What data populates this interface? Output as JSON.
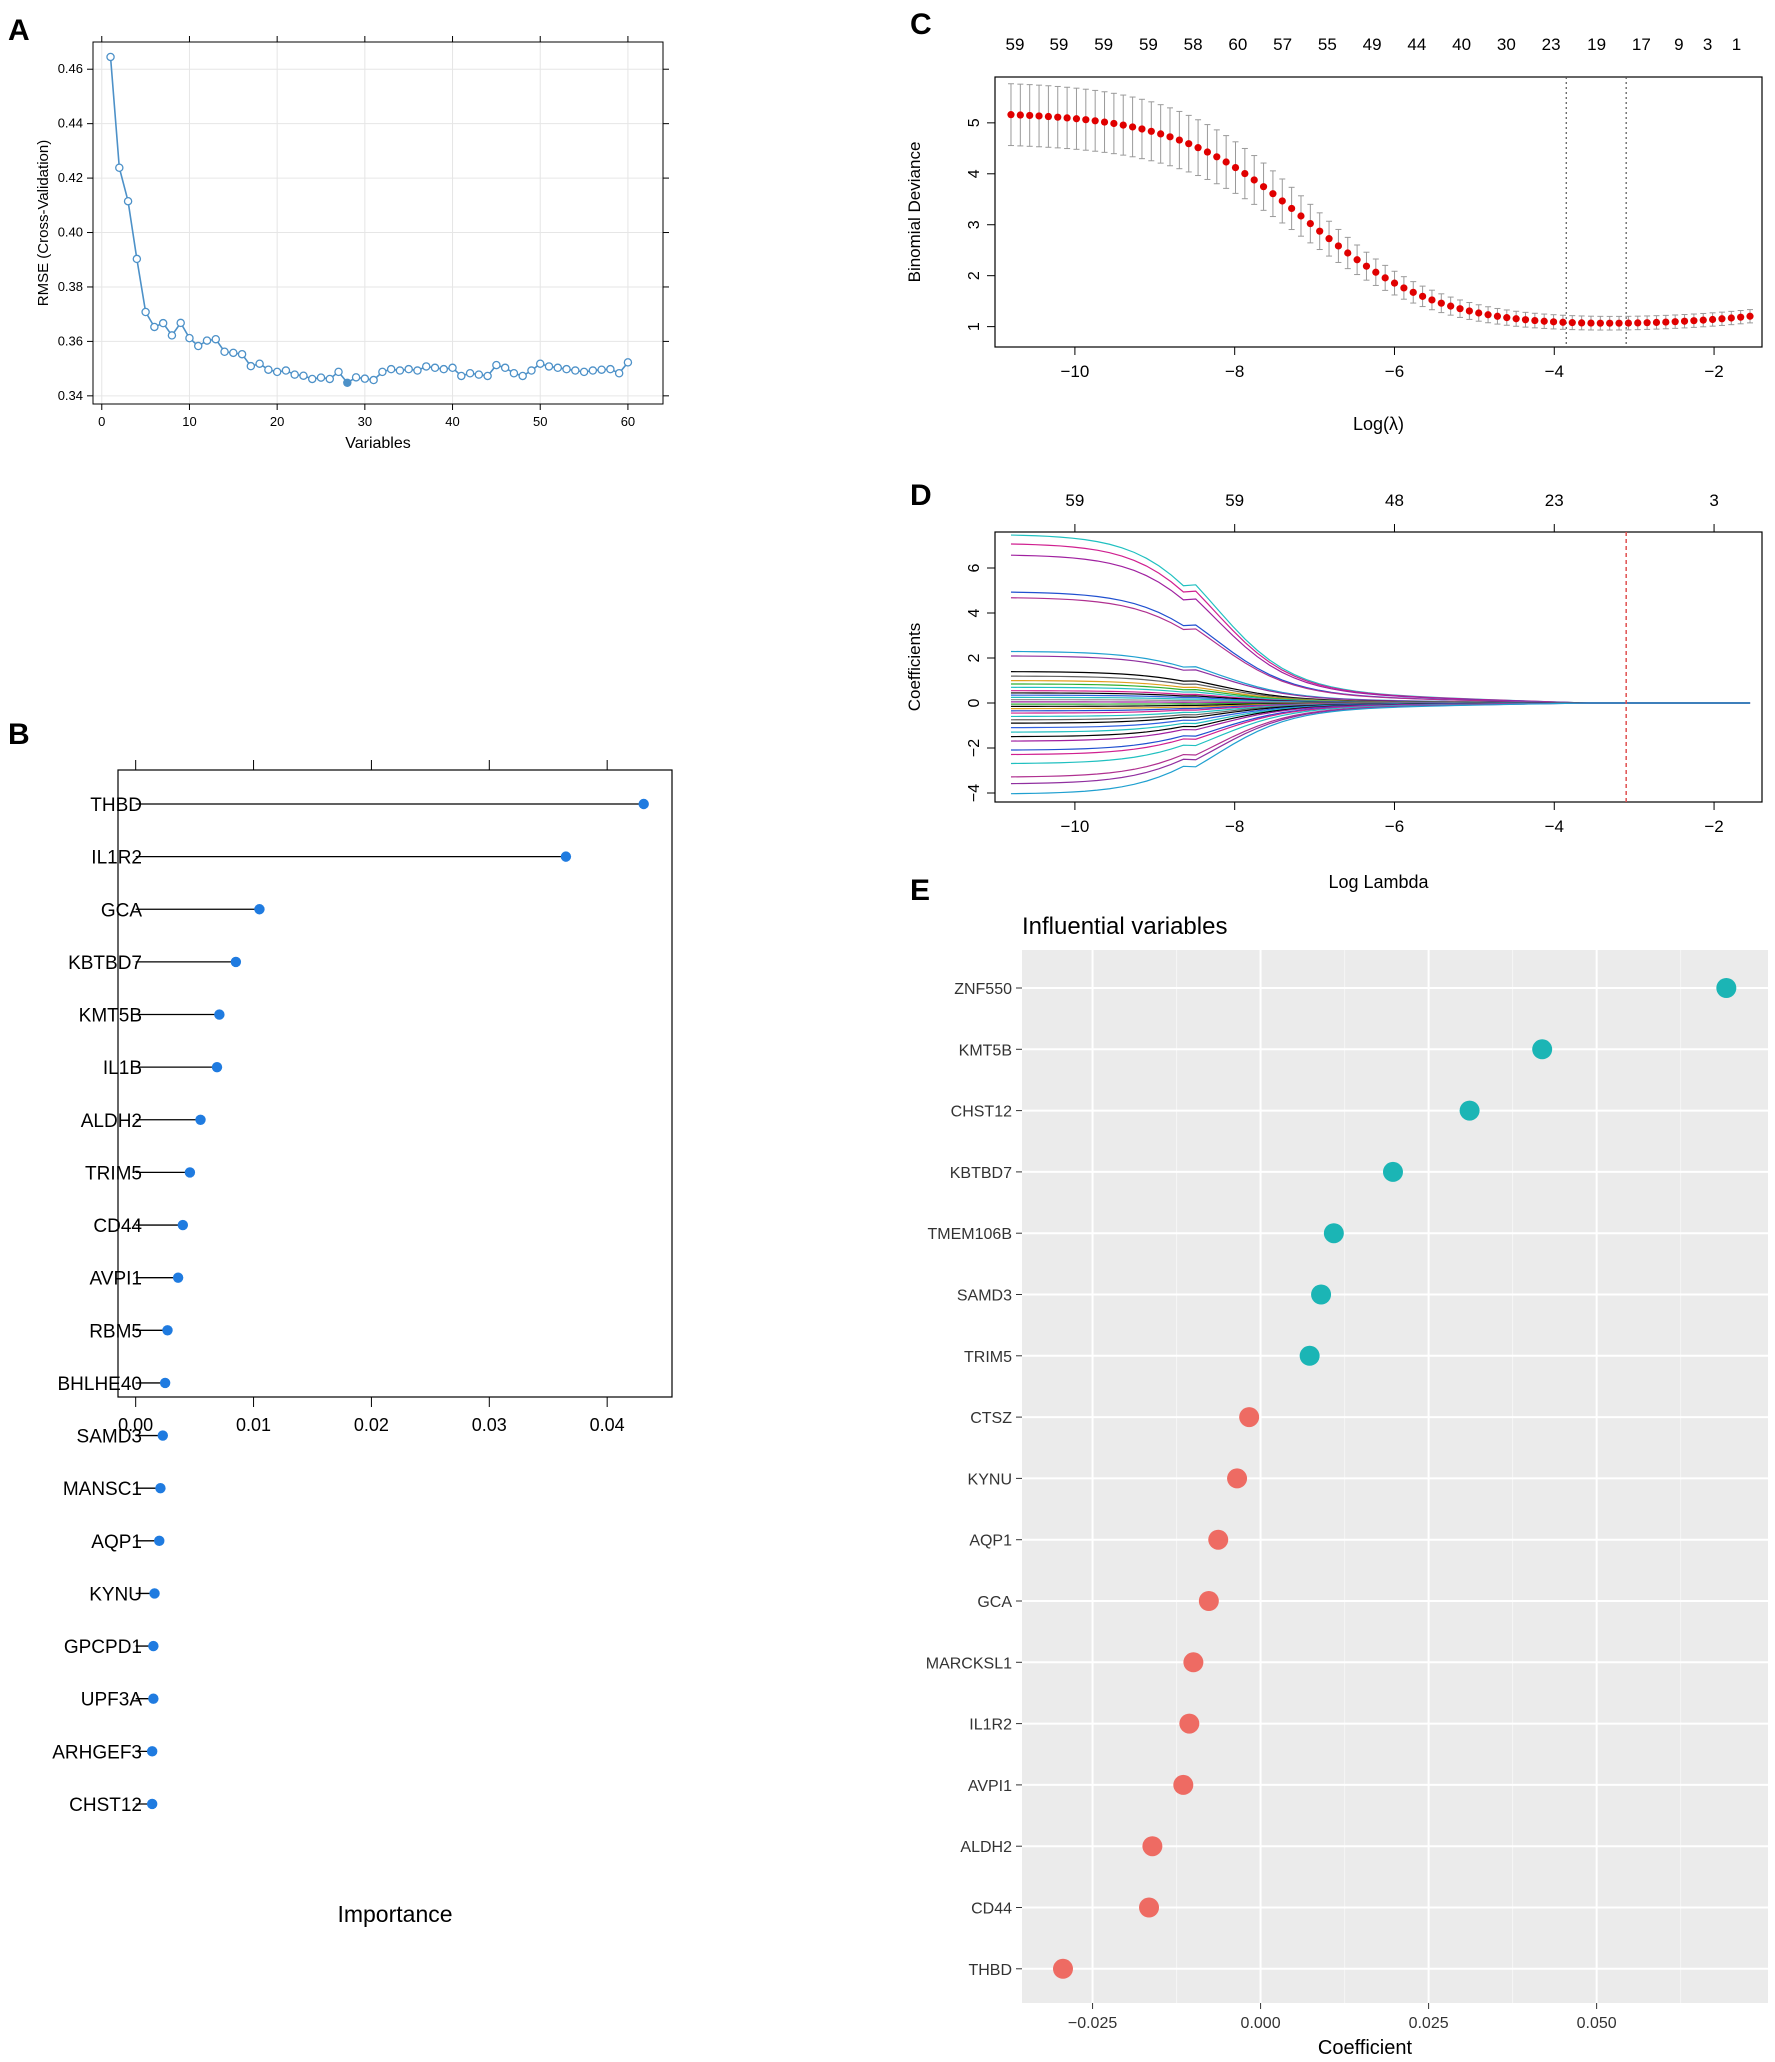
{
  "figure": {
    "colors": {
      "blue": "#1f7be0",
      "rfe_line": "#4d91c8",
      "red": "#e00000",
      "teal": "#1bb5b5",
      "salmon": "#ee6b63",
      "ggplot_bg": "#ebebeb",
      "grid": "#e6e6e6",
      "vline": "#e05050"
    }
  },
  "chart_data": [
    {
      "panel": "A",
      "type": "line",
      "xlabel": "Variables",
      "ylabel": "RMSE (Cross-Validation)",
      "xlim": [
        -1,
        64
      ],
      "ylim": [
        0.337,
        0.47
      ],
      "xticks": [
        0,
        10,
        20,
        30,
        40,
        50,
        60
      ],
      "yticks": [
        0.34,
        0.36,
        0.38,
        0.4,
        0.42,
        0.44,
        0.46
      ],
      "ytick_labels": [
        "0.34",
        "0.36",
        "0.38",
        "0.40",
        "0.42",
        "0.44",
        "0.46"
      ],
      "x": [
        1,
        2,
        3,
        4,
        5,
        6,
        7,
        8,
        9,
        10,
        11,
        12,
        13,
        14,
        15,
        16,
        17,
        18,
        19,
        20,
        21,
        22,
        23,
        24,
        25,
        26,
        27,
        28,
        29,
        30,
        31,
        32,
        33,
        34,
        35,
        36,
        37,
        38,
        39,
        40,
        41,
        42,
        43,
        44,
        45,
        46,
        47,
        48,
        49,
        50,
        51,
        52,
        53,
        54,
        55,
        56,
        57,
        58,
        59,
        60
      ],
      "y": [
        0.4645,
        0.4238,
        0.4115,
        0.3903,
        0.3708,
        0.3653,
        0.3667,
        0.3622,
        0.3668,
        0.3612,
        0.3583,
        0.3603,
        0.3608,
        0.3562,
        0.3558,
        0.3553,
        0.3509,
        0.3518,
        0.3496,
        0.3488,
        0.3493,
        0.3478,
        0.3474,
        0.3462,
        0.3467,
        0.3462,
        0.3488,
        0.3448,
        0.3468,
        0.3463,
        0.3458,
        0.3488,
        0.3498,
        0.3493,
        0.3498,
        0.3493,
        0.3508,
        0.3503,
        0.3498,
        0.3503,
        0.3473,
        0.3483,
        0.3478,
        0.3473,
        0.3513,
        0.3503,
        0.3483,
        0.3473,
        0.3493,
        0.3518,
        0.3508,
        0.3503,
        0.3498,
        0.3493,
        0.3488,
        0.3493,
        0.3496,
        0.3498,
        0.3483,
        0.3523
      ],
      "best_x": 28
    },
    {
      "panel": "B",
      "type": "lollipop",
      "xlabel": "Importance",
      "xlim": [
        -0.0015,
        0.0455
      ],
      "xticks": [
        0.0,
        0.01,
        0.02,
        0.03,
        0.04
      ],
      "xtick_labels": [
        "0.00",
        "0.01",
        "0.02",
        "0.03",
        "0.04"
      ],
      "categories": [
        "THBD",
        "IL1R2",
        "GCA",
        "KBTBD7",
        "KMT5B",
        "IL1B",
        "ALDH2",
        "TRIM5",
        "CD44",
        "AVPI1",
        "RBM5",
        "BHLHE40",
        "SAMD3",
        "MANSC1",
        "AQP1",
        "KYNU",
        "GPCPD1",
        "UPF3A",
        "ARHGEF3",
        "CHST12"
      ],
      "values": [
        0.0431,
        0.0365,
        0.0105,
        0.0085,
        0.0071,
        0.0069,
        0.0055,
        0.0046,
        0.004,
        0.0036,
        0.0027,
        0.0025,
        0.0023,
        0.0021,
        0.002,
        0.0016,
        0.0015,
        0.0015,
        0.0014,
        0.0014
      ]
    },
    {
      "panel": "C",
      "type": "line",
      "xlabel": "Log(λ)",
      "ylabel": "Binomial Deviance",
      "xlim": [
        -11.0,
        -1.4
      ],
      "ylim": [
        0.6,
        5.9
      ],
      "xticks": [
        -10,
        -8,
        -6,
        -4,
        -2
      ],
      "xtick_labels": [
        "−10",
        "−8",
        "−6",
        "−4",
        "−2"
      ],
      "yticks": [
        1,
        2,
        3,
        4,
        5
      ],
      "top_axis_ticks": [
        -10.75,
        -10.2,
        -9.64,
        -9.08,
        -8.52,
        -7.96,
        -7.4,
        -6.84,
        -6.28,
        -5.72,
        -5.16,
        -4.6,
        -4.04,
        -3.47,
        -2.91,
        -2.44,
        -2.08,
        -1.72
      ],
      "top_axis_labels": [
        "59",
        "59",
        "59",
        "59",
        "58",
        "60",
        "57",
        "55",
        "49",
        "44",
        "40",
        "30",
        "23",
        "19",
        "17",
        "9",
        "3",
        "1"
      ],
      "lambda_min": -3.85,
      "lambda_1se": -3.1,
      "curve_formula": "deviance = 0.94 + 4.27/(1+exp(1.2*(logλ+7.1))) + 0.25*exp(0.65*(logλ+1.6))",
      "x_start": -10.8,
      "x_end": -1.55,
      "n_points": 80
    },
    {
      "panel": "D",
      "type": "line",
      "xlabel": "Log Lambda",
      "ylabel": "Coefficients",
      "xlim": [
        -11.0,
        -1.4
      ],
      "ylim": [
        -4.4,
        7.6
      ],
      "xticks": [
        -10,
        -8,
        -6,
        -4,
        -2
      ],
      "xtick_labels": [
        "−10",
        "−8",
        "−6",
        "−4",
        "−2"
      ],
      "yticks": [
        -4,
        -2,
        0,
        2,
        4,
        6
      ],
      "ytick_labels": [
        "−4",
        "−2",
        "0",
        "2",
        "4",
        "6"
      ],
      "top_axis_ticks": [
        -10,
        -8,
        -6,
        -4,
        -2
      ],
      "top_axis_labels": [
        "59",
        "59",
        "48",
        "23",
        "3"
      ],
      "vline": -3.1,
      "series_start_values": [
        7.5,
        7.1,
        6.6,
        4.95,
        4.7,
        2.3,
        2.1,
        1.4,
        1.2,
        1.0,
        0.85,
        0.7,
        0.55,
        0.45,
        0.35,
        0.25,
        0.15,
        0.05,
        -0.05,
        -0.15,
        -0.25,
        -0.35,
        -0.45,
        -0.6,
        -0.75,
        -0.9,
        -1.1,
        -1.3,
        -1.5,
        -1.7,
        -2.1,
        -2.3,
        -2.7,
        -3.3,
        -3.6,
        -4.05
      ],
      "series_colors": [
        "#20c0c0",
        "#d02090",
        "#a020a0",
        "#2050d0",
        "#b03090",
        "#20a0d0",
        "#9030a0",
        "#000000",
        "#606060",
        "#e0a020",
        "#30b030",
        "#20c0c0",
        "#d02090",
        "#000000",
        "#3060e0",
        "#20c0c0",
        "#909090",
        "#a020a0",
        "#30b030",
        "#000000",
        "#e0a020",
        "#2050d0",
        "#d02090",
        "#20c0c0",
        "#606060",
        "#000000",
        "#3060e0",
        "#20c0c0",
        "#000000",
        "#a020a0",
        "#2050d0",
        "#d02090",
        "#20c0c0",
        "#b03090",
        "#9030a0",
        "#20a0d0"
      ]
    },
    {
      "panel": "E",
      "type": "dot",
      "title": "Influential variables",
      "xlabel": "Coefficient",
      "xlim": [
        -0.0355,
        0.0755
      ],
      "xticks": [
        -0.025,
        0.0,
        0.025,
        0.05
      ],
      "xtick_labels": [
        "−0.025",
        "0.000",
        "0.025",
        "0.050"
      ],
      "minor_xticks": [
        -0.0125,
        0.0125,
        0.0375,
        0.0625
      ],
      "categories": [
        "ZNF550",
        "KMT5B",
        "CHST12",
        "KBTBD7",
        "TMEM106B",
        "SAMD3",
        "TRIM5",
        "CTSZ",
        "KYNU",
        "AQP1",
        "GCA",
        "MARCKSL1",
        "IL1R2",
        "AVPI1",
        "ALDH2",
        "CD44",
        "THBD"
      ],
      "values": [
        0.0693,
        0.0419,
        0.0311,
        0.0197,
        0.0109,
        0.009,
        0.0073,
        -0.0017,
        -0.0035,
        -0.0063,
        -0.0077,
        -0.01,
        -0.0106,
        -0.0115,
        -0.0161,
        -0.0166,
        -0.0294
      ]
    }
  ],
  "panel_labels": {
    "a": "A",
    "b": "B",
    "c": "C",
    "d": "D",
    "e": "E"
  }
}
